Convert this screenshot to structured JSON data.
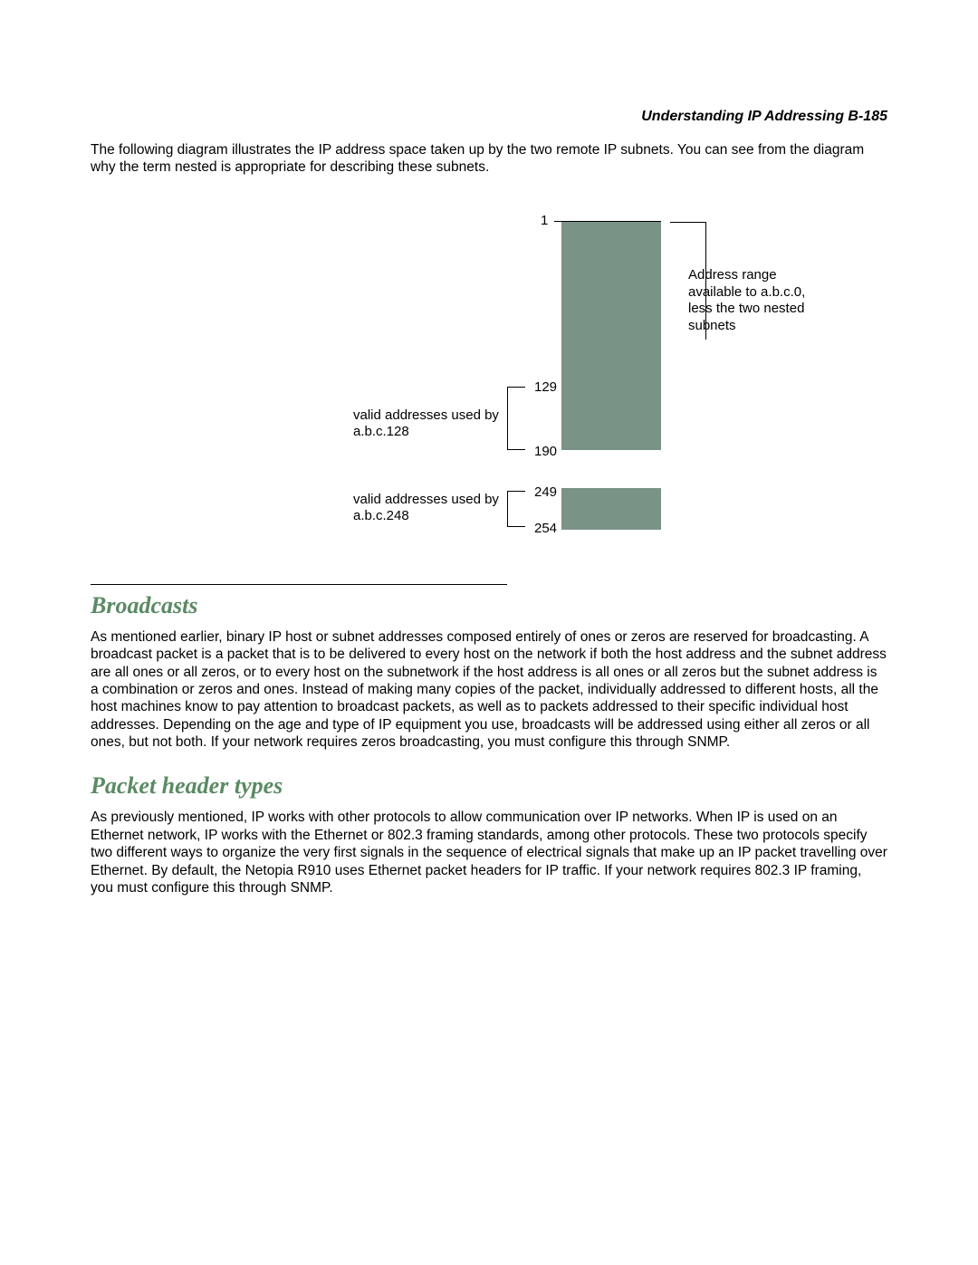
{
  "header": "Understanding IP Addressing  B-185",
  "intro": "The following diagram illustrates the IP address space taken up by the two remote IP subnets. You can see from the diagram why the term nested is appropriate for describing these subnets.",
  "diagram": {
    "type": "infographic",
    "bar": {
      "color": "#7a9387",
      "background_color": "#ffffff",
      "range_min": 1,
      "range_max": 254,
      "gap_start": 190,
      "gap_end": 249
    },
    "top_label": "1",
    "right_annotation": "Address range available to a.b.c.0, less the two nested subnets",
    "left_groups": [
      {
        "label": "valid addresses used by a.b.c.128",
        "start": "129",
        "end": "190"
      },
      {
        "label": "valid addresses used by a.b.c.248",
        "start": "249",
        "end": "254"
      }
    ],
    "font_size": 15,
    "line_color": "#000000"
  },
  "sections": [
    {
      "heading": "Broadcasts",
      "text": "As mentioned earlier, binary IP host or subnet addresses composed entirely of ones or zeros are reserved for broadcasting. A broadcast packet is a packet that is to be delivered to every host on the network if both the host address and the subnet address are all ones or all zeros, or to every host on the subnetwork if the host address is all ones or all zeros but the subnet address is a combination or zeros and ones. Instead of making many copies of the packet, individually addressed to different hosts, all the host machines know to pay attention to broadcast packets, as well as to packets addressed to their specific individual host addresses. Depending on the age and type of IP equipment you use, broadcasts will be addressed using either all zeros or all ones, but not both. If your network requires zeros broadcasting, you must configure this through SNMP."
    },
    {
      "heading": "Packet header types",
      "text": "As previously mentioned, IP works with other protocols to allow communication over IP networks. When IP is used on an Ethernet network, IP works with the Ethernet or 802.3 framing standards, among other protocols. These two protocols specify two different ways to organize the very first signals in the sequence of electrical signals that make up an IP packet travelling over Ethernet. By default, the Netopia R910 uses Ethernet packet headers for IP traffic. If your network requires 802.3 IP framing, you must configure this through SNMP."
    }
  ],
  "heading_color": "#5a8a63"
}
